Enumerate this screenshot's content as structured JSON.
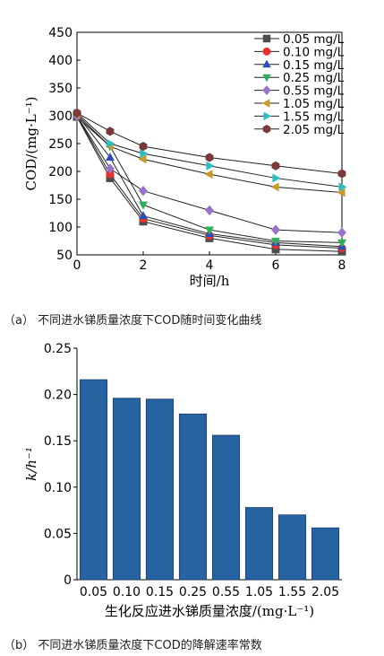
{
  "figure": {
    "caption_a": "（a） 不同进水锑质量浓度下COD随时间变化曲线",
    "caption_b": "（b） 不同进水锑质量浓度下COD的降解速率常数"
  },
  "chart_data": [
    {
      "type": "line",
      "xlabel": "时间/h",
      "ylabel": "COD/(mg·L⁻¹)",
      "xlim": [
        0,
        8
      ],
      "ylim": [
        50,
        450
      ],
      "x_ticks": [
        "0",
        "2",
        "4",
        "6",
        "8"
      ],
      "y_ticks": [
        "50",
        "100",
        "150",
        "200",
        "250",
        "300",
        "350",
        "400",
        "450"
      ],
      "x": [
        0,
        1,
        2,
        4,
        6,
        8
      ],
      "grid": false,
      "legend_position": "top-right",
      "series": [
        {
          "name": "0.05 mg/L",
          "marker": "square",
          "color": "#4d4d4d",
          "values": [
            298,
            188,
            110,
            80,
            60,
            56
          ]
        },
        {
          "name": "0.10 mg/L",
          "marker": "circle",
          "color": "#e8302e",
          "values": [
            300,
            195,
            115,
            85,
            68,
            62
          ]
        },
        {
          "name": "0.15 mg/L",
          "marker": "triangle-up",
          "color": "#2a4fb5",
          "values": [
            302,
            225,
            120,
            88,
            72,
            65
          ]
        },
        {
          "name": "0.25 mg/L",
          "marker": "triangle-down",
          "color": "#2eaf5a",
          "values": [
            298,
            245,
            140,
            95,
            75,
            72
          ]
        },
        {
          "name": "0.55 mg/L",
          "marker": "diamond",
          "color": "#9a72c8",
          "values": [
            300,
            205,
            165,
            130,
            95,
            90
          ]
        },
        {
          "name": "1.05 mg/L",
          "marker": "triangle-left",
          "color": "#c89a2a",
          "values": [
            302,
            245,
            222,
            195,
            172,
            162
          ]
        },
        {
          "name": "1.55 mg/L",
          "marker": "triangle-right",
          "color": "#2bbcc4",
          "values": [
            305,
            250,
            232,
            210,
            188,
            172
          ]
        },
        {
          "name": "2.05 mg/L",
          "marker": "hexagon",
          "color": "#7a3a3a",
          "values": [
            305,
            272,
            245,
            225,
            210,
            196
          ]
        }
      ]
    },
    {
      "type": "bar",
      "xlabel": "生化反应进水锑质量浓度/(mg·L⁻¹)",
      "ylabel": "k/h⁻¹",
      "ylim": [
        0,
        0.25
      ],
      "y_ticks": [
        "0",
        "0.05",
        "0.10",
        "0.15",
        "0.20",
        "0.25"
      ],
      "categories": [
        "0.05",
        "0.10",
        "0.15",
        "0.25",
        "0.55",
        "1.05",
        "1.55",
        "2.05"
      ],
      "values": [
        0.216,
        0.196,
        0.195,
        0.179,
        0.156,
        0.078,
        0.07,
        0.056
      ],
      "bar_color": "#2763a0",
      "grid": false
    }
  ]
}
